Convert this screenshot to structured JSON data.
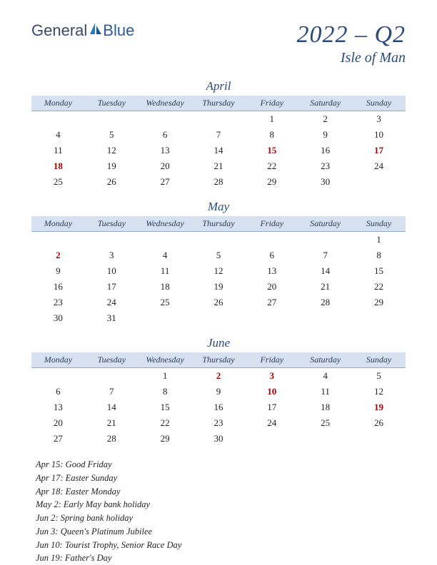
{
  "logo": {
    "part1": "General",
    "part2": "Blue"
  },
  "title": {
    "main": "2022 – Q2",
    "sub": "Isle of Man"
  },
  "dayHeaders": [
    "Monday",
    "Tuesday",
    "Wednesday",
    "Thursday",
    "Friday",
    "Saturday",
    "Sunday"
  ],
  "colors": {
    "header_bg": "#d6e2f2",
    "header_border": "#94a8c8",
    "title_color": "#2a4a7a",
    "holiday_color": "#b00000",
    "text_color": "#222222",
    "background": "#ffffff"
  },
  "months": [
    {
      "name": "April",
      "weeks": [
        [
          "",
          "",
          "",
          "",
          "1",
          "2",
          "3"
        ],
        [
          "4",
          "5",
          "6",
          "7",
          "8",
          "9",
          "10"
        ],
        [
          "11",
          "12",
          "13",
          "14",
          "15",
          "16",
          "17"
        ],
        [
          "18",
          "19",
          "20",
          "21",
          "22",
          "23",
          "24"
        ],
        [
          "25",
          "26",
          "27",
          "28",
          "29",
          "30",
          ""
        ]
      ],
      "holidays": [
        "15",
        "17",
        "18"
      ]
    },
    {
      "name": "May",
      "weeks": [
        [
          "",
          "",
          "",
          "",
          "",
          "",
          "1"
        ],
        [
          "2",
          "3",
          "4",
          "5",
          "6",
          "7",
          "8"
        ],
        [
          "9",
          "10",
          "11",
          "12",
          "13",
          "14",
          "15"
        ],
        [
          "16",
          "17",
          "18",
          "19",
          "20",
          "21",
          "22"
        ],
        [
          "23",
          "24",
          "25",
          "26",
          "27",
          "28",
          "29"
        ],
        [
          "30",
          "31",
          "",
          "",
          "",
          "",
          ""
        ]
      ],
      "holidays": [
        "2"
      ]
    },
    {
      "name": "June",
      "weeks": [
        [
          "",
          "",
          "1",
          "2",
          "3",
          "4",
          "5"
        ],
        [
          "6",
          "7",
          "8",
          "9",
          "10",
          "11",
          "12"
        ],
        [
          "13",
          "14",
          "15",
          "16",
          "17",
          "18",
          "19"
        ],
        [
          "20",
          "21",
          "22",
          "23",
          "24",
          "25",
          "26"
        ],
        [
          "27",
          "28",
          "29",
          "30",
          "",
          "",
          ""
        ]
      ],
      "holidays": [
        "2",
        "3",
        "10",
        "19"
      ]
    }
  ],
  "holidayList": [
    "Apr 15: Good Friday",
    "Apr 17: Easter Sunday",
    "Apr 18: Easter Monday",
    "May 2: Early May bank holiday",
    "Jun 2: Spring bank holiday",
    "Jun 3: Queen's Platinum Jubilee",
    "Jun 10: Tourist Trophy, Senior Race Day",
    "Jun 19: Father's Day"
  ]
}
